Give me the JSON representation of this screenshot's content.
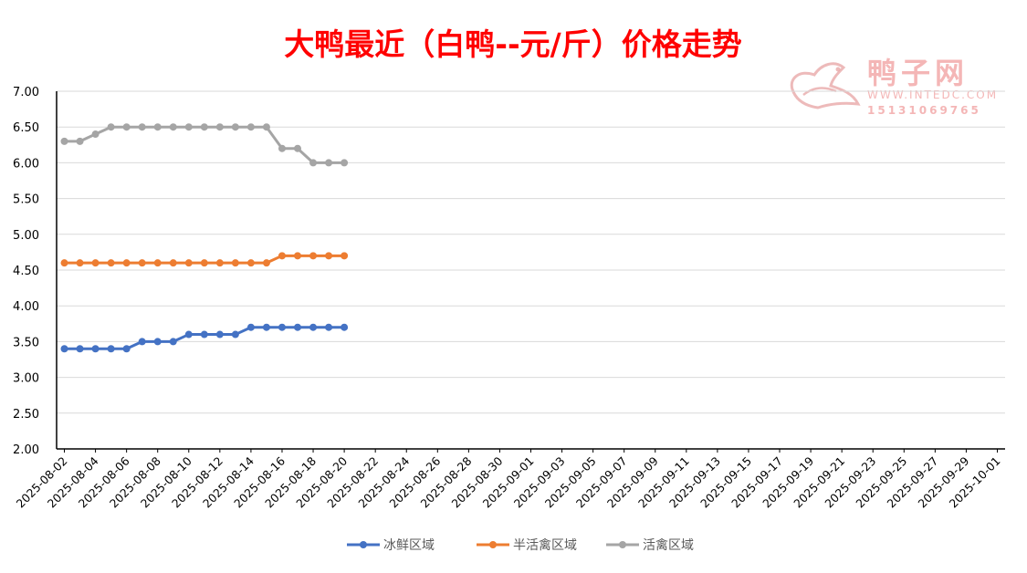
{
  "chart_data": {
    "type": "line",
    "title": "大鸭最近（白鸭--元/斤）价格走势",
    "xlabel": "",
    "ylabel": "",
    "ylim": [
      2.0,
      7.0
    ],
    "yticks": [
      "2.00",
      "2.50",
      "3.00",
      "3.50",
      "4.00",
      "4.50",
      "5.00",
      "5.50",
      "6.00",
      "6.50",
      "7.00"
    ],
    "xlim": [
      "2025-08-02",
      "2025-10-02"
    ],
    "x": [
      "2025-08-02",
      "2025-08-03",
      "2025-08-04",
      "2025-08-05",
      "2025-08-06",
      "2025-08-07",
      "2025-08-08",
      "2025-08-09",
      "2025-08-10",
      "2025-08-11",
      "2025-08-12",
      "2025-08-13",
      "2025-08-14",
      "2025-08-15",
      "2025-08-16",
      "2025-08-17",
      "2025-08-18",
      "2025-08-19",
      "2025-08-20"
    ],
    "xtick_labels": [
      "2025-08-02",
      "2025-08-04",
      "2025-08-06",
      "2025-08-08",
      "2025-08-10",
      "2025-08-12",
      "2025-08-14",
      "2025-08-16",
      "2025-08-18",
      "2025-08-20",
      "2025-08-22",
      "2025-08-24",
      "2025-08-26",
      "2025-08-28",
      "2025-08-30",
      "2025-09-01",
      "2025-09-03",
      "2025-09-05",
      "2025-09-07",
      "2025-09-09",
      "2025-09-11",
      "2025-09-13",
      "2025-09-15",
      "2025-09-17",
      "2025-09-19",
      "2025-09-21",
      "2025-09-23",
      "2025-09-25",
      "2025-09-27",
      "2025-09-29",
      "2025-10-01"
    ],
    "series": [
      {
        "name": "冰鲜区域",
        "color": "#4472C4",
        "values": [
          3.4,
          3.4,
          3.4,
          3.4,
          3.4,
          3.5,
          3.5,
          3.5,
          3.6,
          3.6,
          3.6,
          3.6,
          3.7,
          3.7,
          3.7,
          3.7,
          3.7,
          3.7,
          3.7
        ]
      },
      {
        "name": "半活禽区域",
        "color": "#ED7D31",
        "values": [
          4.6,
          4.6,
          4.6,
          4.6,
          4.6,
          4.6,
          4.6,
          4.6,
          4.6,
          4.6,
          4.6,
          4.6,
          4.6,
          4.6,
          4.7,
          4.7,
          4.7,
          4.7,
          4.7
        ]
      },
      {
        "name": "活禽区域",
        "color": "#A5A5A5",
        "values": [
          6.3,
          6.3,
          6.4,
          6.5,
          6.5,
          6.5,
          6.5,
          6.5,
          6.5,
          6.5,
          6.5,
          6.5,
          6.5,
          6.5,
          6.2,
          6.2,
          6.0,
          6.0,
          6.0
        ]
      }
    ],
    "grid": true,
    "legend": "bottom-center",
    "title_color": "#FF0000"
  },
  "watermark": {
    "brand": "鸭子网",
    "url": "WWW.INTEDC.COM",
    "phone": "15131069765",
    "color": "#F4B6B6",
    "icon": "duck-logo-icon"
  }
}
